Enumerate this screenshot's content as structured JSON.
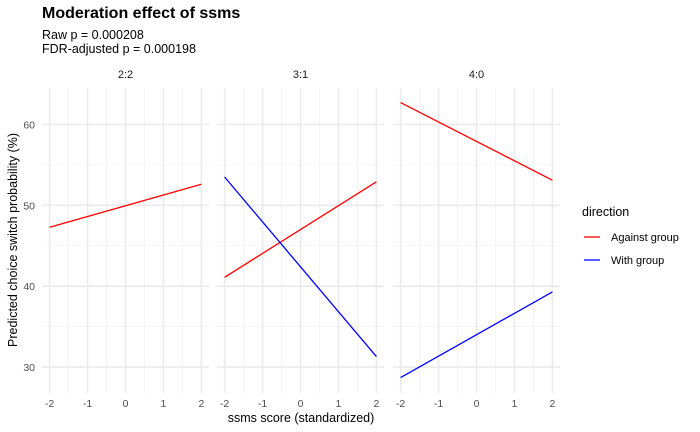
{
  "chart_data": {
    "type": "line",
    "title": "Moderation effect of ssms",
    "subtitle": [
      "Raw p = 0.000208",
      "FDR-adjusted p = 0.000198"
    ],
    "xlabel": "ssms score (standardized)",
    "ylabel": "Predicted choice switch probability (%)",
    "xlim": [
      -2.2,
      2.2
    ],
    "ylim": [
      26.8,
      64.5
    ],
    "x_ticks": [
      -2,
      -1,
      0,
      1,
      2
    ],
    "y_ticks": [
      30,
      40,
      50,
      60
    ],
    "grid": true,
    "legend": {
      "title": "direction",
      "position": "right",
      "entries": [
        {
          "label": "Against group",
          "color": "#ff0000"
        },
        {
          "label": "With group",
          "color": "#0000ff"
        }
      ]
    },
    "panels": [
      {
        "label": "2:2",
        "series": [
          {
            "name": "Against group",
            "color": "#ff0000",
            "x": [
              -2,
              2
            ],
            "y": [
              47.3,
              52.6
            ]
          }
        ]
      },
      {
        "label": "3:1",
        "series": [
          {
            "name": "Against group",
            "color": "#ff0000",
            "x": [
              -2,
              2
            ],
            "y": [
              41.1,
              52.9
            ]
          },
          {
            "name": "With group",
            "color": "#0000ff",
            "x": [
              -2,
              2
            ],
            "y": [
              53.5,
              31.3
            ]
          }
        ]
      },
      {
        "label": "4:0",
        "series": [
          {
            "name": "Against group",
            "color": "#ff0000",
            "x": [
              -2,
              2
            ],
            "y": [
              62.7,
              53.1
            ]
          },
          {
            "name": "With group",
            "color": "#0000ff",
            "x": [
              -2,
              2
            ],
            "y": [
              28.7,
              39.3
            ]
          }
        ]
      }
    ]
  }
}
